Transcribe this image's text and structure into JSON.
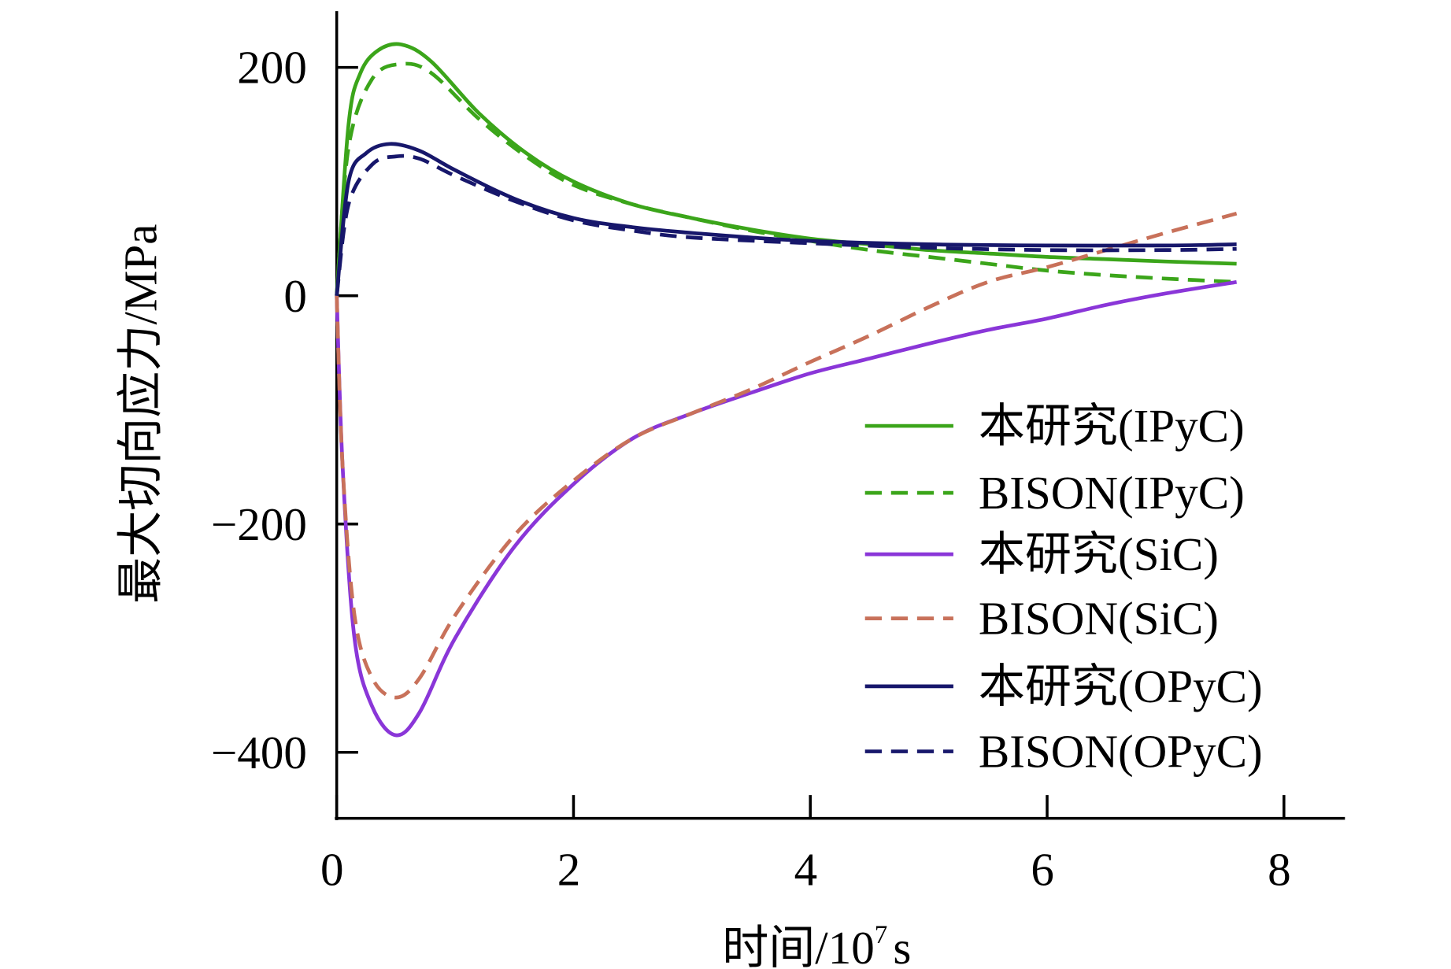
{
  "chart_data": {
    "type": "line",
    "title": "",
    "xlabel": "时间/10",
    "xlabel_sup": "7",
    "xlabel_unit": "s",
    "ylabel": "最大切向应力/MPa",
    "xlim": [
      0,
      8.5
    ],
    "ylim": [
      -460,
      250
    ],
    "xticks": [
      0,
      2,
      4,
      6,
      8
    ],
    "xtick_labels": [
      "0",
      "2",
      "4",
      "6",
      "8"
    ],
    "yticks": [
      200,
      0,
      -200,
      -400
    ],
    "ytick_labels": [
      "200",
      "0",
      "−200",
      "−400"
    ],
    "grid": false,
    "legend_position": "right-center",
    "series": [
      {
        "name": "本研究(IPyC)",
        "color": "#3ba51a",
        "dash": false,
        "x": [
          0,
          0.1,
          0.2,
          0.35,
          0.55,
          0.8,
          1.2,
          1.6,
          2,
          2.5,
          3,
          3.5,
          4,
          4.5,
          5,
          5.5,
          6,
          6.5,
          7,
          7.6
        ],
        "y": [
          0,
          150,
          195,
          215,
          220,
          205,
          160,
          125,
          100,
          80,
          68,
          58,
          50,
          45,
          40,
          37,
          34,
          32,
          30,
          28
        ]
      },
      {
        "name": "BISON(IPyC)",
        "color": "#3ba51a",
        "dash": true,
        "x": [
          0,
          0.1,
          0.3,
          0.55,
          0.8,
          1.2,
          1.6,
          2,
          2.5,
          3,
          3.5,
          4,
          4.5,
          5,
          5.5,
          6,
          6.5,
          7,
          7.6
        ],
        "y": [
          0,
          130,
          190,
          203,
          195,
          155,
          122,
          97,
          80,
          68,
          57,
          48,
          40,
          34,
          28,
          22,
          18,
          15,
          12
        ]
      },
      {
        "name": "本研究(SiC)",
        "color": "#8a36d8",
        "dash": false,
        "x": [
          0,
          0.05,
          0.15,
          0.3,
          0.5,
          0.7,
          1,
          1.5,
          2,
          2.5,
          3,
          3.5,
          4,
          4.5,
          5,
          5.5,
          6,
          6.5,
          7,
          7.6
        ],
        "y": [
          0,
          -150,
          -300,
          -360,
          -385,
          -365,
          -300,
          -220,
          -165,
          -125,
          -103,
          -85,
          -68,
          -55,
          -42,
          -30,
          -20,
          -8,
          2,
          12
        ]
      },
      {
        "name": "BISON(SiC)",
        "color": "#c8715a",
        "dash": true,
        "x": [
          0,
          0.05,
          0.15,
          0.3,
          0.5,
          0.7,
          1,
          1.5,
          2,
          2.5,
          3,
          3.5,
          4,
          4.5,
          5,
          5.5,
          6,
          6.5,
          7,
          7.6
        ],
        "y": [
          0,
          -150,
          -280,
          -335,
          -352,
          -335,
          -280,
          -210,
          -162,
          -125,
          -103,
          -82,
          -58,
          -35,
          -10,
          12,
          25,
          40,
          55,
          72
        ]
      },
      {
        "name": "本研究(OPyC)",
        "color": "#17176b",
        "dash": false,
        "x": [
          0,
          0.1,
          0.25,
          0.45,
          0.7,
          1,
          1.5,
          2,
          2.5,
          3,
          3.5,
          4,
          5,
          6,
          7,
          7.6
        ],
        "y": [
          0,
          100,
          125,
          133,
          127,
          110,
          85,
          68,
          60,
          55,
          51,
          48,
          45,
          44,
          44,
          45
        ]
      },
      {
        "name": "BISON(OPyC)",
        "color": "#17176b",
        "dash": true,
        "x": [
          0,
          0.1,
          0.3,
          0.5,
          0.7,
          1,
          1.5,
          2,
          2.5,
          3,
          4,
          5,
          6,
          7,
          7.6
        ],
        "y": [
          0,
          80,
          115,
          122,
          120,
          105,
          83,
          66,
          57,
          51,
          46,
          42,
          40,
          40,
          41
        ]
      }
    ]
  }
}
